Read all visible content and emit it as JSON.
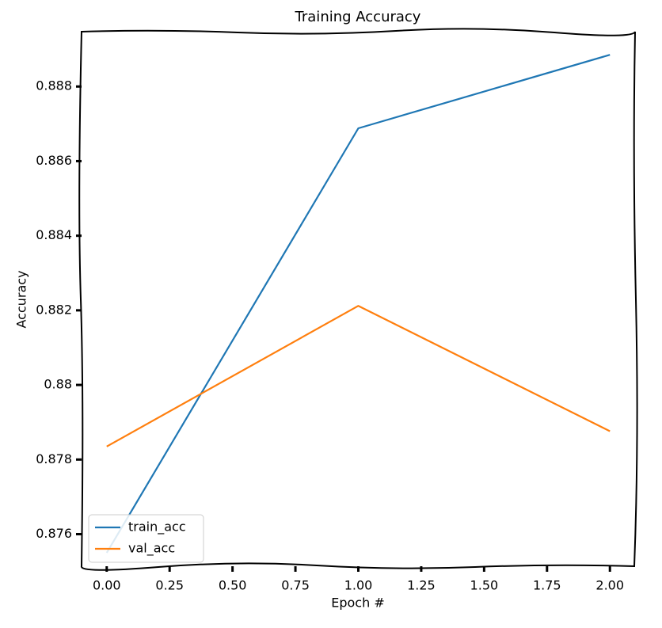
{
  "chart_data": {
    "type": "line",
    "title": "Training Accuracy",
    "xlabel": "Epoch #",
    "ylabel": "Accuracy",
    "x": [
      0,
      1,
      2
    ],
    "series": [
      {
        "name": "train_acc",
        "color": "#1f77b4",
        "values": [
          0.8755,
          0.88688,
          0.88885
        ]
      },
      {
        "name": "val_acc",
        "color": "#ff7f0e",
        "values": [
          0.87835,
          0.88212,
          0.87876
        ]
      }
    ],
    "xlim": [
      -0.1,
      2.1
    ],
    "xticks": [
      {
        "value": 0,
        "label": "0.00"
      },
      0.25,
      {
        "value": 0.5,
        "label": "0.50"
      },
      0.75,
      {
        "value": 1,
        "label": "1.00"
      },
      1.25,
      {
        "value": 1.5,
        "label": "1.50"
      },
      1.75,
      {
        "value": 2,
        "label": "2.00"
      }
    ],
    "ylim": [
      0.87514,
      0.88947
    ],
    "yticks": [
      0.876,
      0.878,
      0.88,
      0.882,
      0.884,
      0.886,
      0.888
    ],
    "legend": "lower left"
  }
}
